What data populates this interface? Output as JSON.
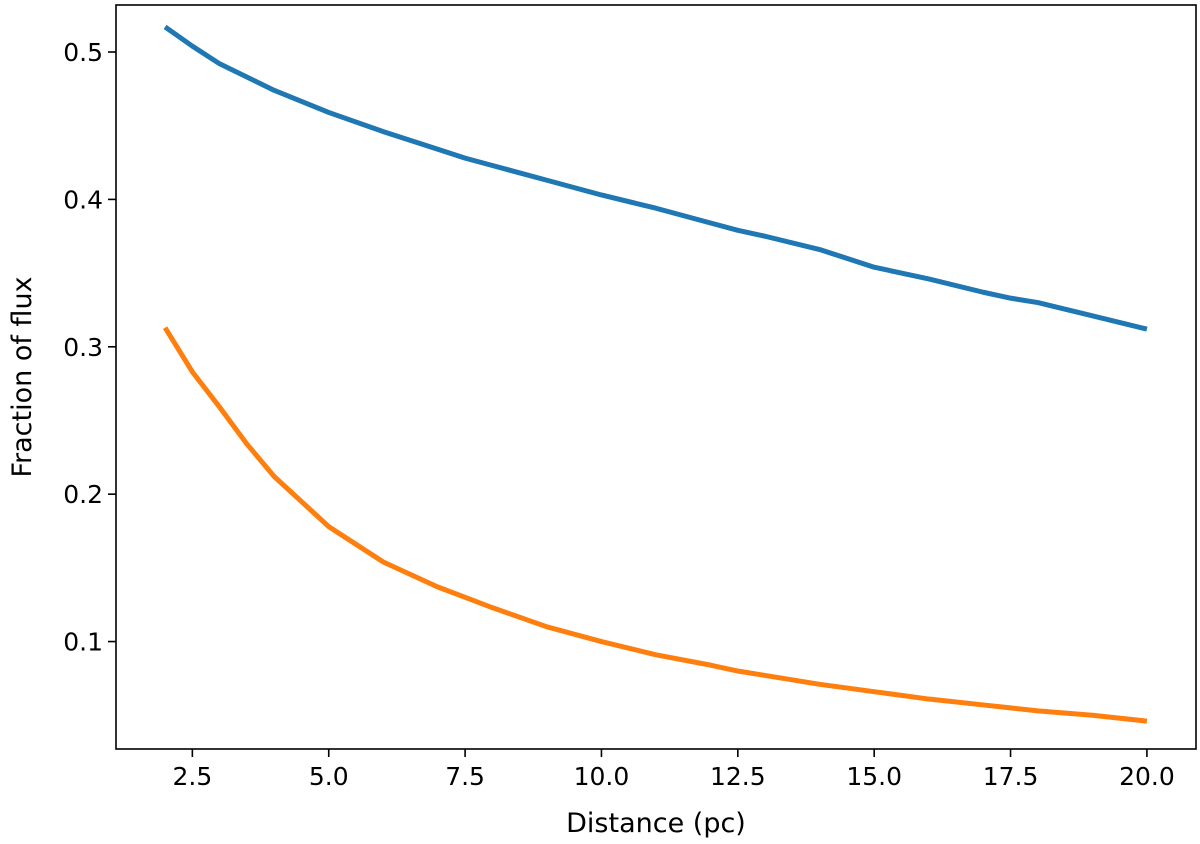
{
  "chart_data": {
    "type": "line",
    "title": "",
    "xlabel": "Distance (pc)",
    "ylabel": "Fraction of flux",
    "xlim": [
      1.1,
      20.9
    ],
    "ylim": [
      0.0271,
      0.5319
    ],
    "x_ticks": [
      2.5,
      5.0,
      7.5,
      10.0,
      12.5,
      15.0,
      17.5,
      20.0
    ],
    "x_tick_labels": [
      "2.5",
      "5.0",
      "7.5",
      "10.0",
      "12.5",
      "15.0",
      "17.5",
      "20.0"
    ],
    "y_ticks": [
      0.1,
      0.2,
      0.3,
      0.4,
      0.5
    ],
    "y_tick_labels": [
      "0.1",
      "0.2",
      "0.3",
      "0.4",
      "0.5"
    ],
    "grid": false,
    "legend": "none",
    "series": [
      {
        "color": "#1f77b4",
        "x": [
          2.0,
          2.5,
          3.0,
          4.0,
          5.0,
          6.0,
          7.0,
          7.5,
          8.0,
          9.0,
          10.0,
          11.0,
          12.0,
          12.5,
          13.0,
          14.0,
          15.0,
          16.0,
          17.0,
          17.5,
          18.0,
          19.0,
          20.0
        ],
        "y": [
          0.517,
          0.504,
          0.492,
          0.474,
          0.459,
          0.446,
          0.434,
          0.428,
          0.423,
          0.413,
          0.403,
          0.394,
          0.384,
          0.379,
          0.375,
          0.366,
          0.354,
          0.346,
          0.337,
          0.333,
          0.33,
          0.321,
          0.312
        ]
      },
      {
        "color": "#ff7f0e",
        "x": [
          2.0,
          2.5,
          3.0,
          3.5,
          4.0,
          5.0,
          6.0,
          7.0,
          7.5,
          8.0,
          9.0,
          10.0,
          11.0,
          12.0,
          12.5,
          13.0,
          14.0,
          15.0,
          16.0,
          17.0,
          17.5,
          18.0,
          19.0,
          20.0
        ],
        "y": [
          0.313,
          0.283,
          0.259,
          0.234,
          0.212,
          0.178,
          0.154,
          0.137,
          0.13,
          0.123,
          0.11,
          0.1,
          0.091,
          0.084,
          0.08,
          0.077,
          0.071,
          0.066,
          0.061,
          0.057,
          0.055,
          0.053,
          0.05,
          0.046
        ]
      }
    ]
  }
}
